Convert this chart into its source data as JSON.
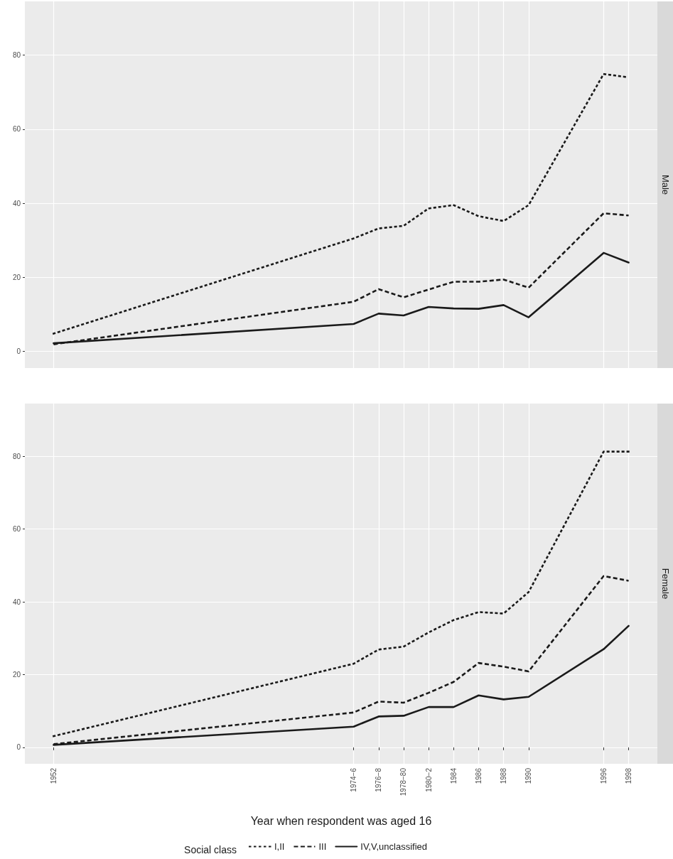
{
  "chart_data": [
    {
      "type": "line",
      "title": "Male",
      "x": [
        1952,
        1976,
        1978,
        1980,
        1982,
        1984,
        1986,
        1988,
        1990,
        1996,
        1998
      ],
      "series": [
        {
          "color": "#1a1a1a",
          "line_style": "dotted",
          "values": [
            4.8,
            30.5,
            33.2,
            33.9,
            38.6,
            39.5,
            36.5,
            35.2,
            39.5,
            74.9,
            74.0
          ]
        },
        {
          "color": "#1a1a1a",
          "line_style": "dashed",
          "values": [
            1.9,
            13.4,
            16.8,
            14.6,
            16.7,
            18.8,
            18.8,
            19.4,
            17.2,
            37.3,
            36.7
          ]
        },
        {
          "color": "#1a1a1a",
          "line_style": "solid",
          "values": [
            2.2,
            7.4,
            10.2,
            9.7,
            12.0,
            11.6,
            11.5,
            12.5,
            9.2,
            26.6,
            24.0
          ]
        }
      ],
      "xlim": [
        1949.7,
        2000.3
      ],
      "xticks": [
        1952,
        1976,
        1978,
        1980,
        1982,
        1984,
        1986,
        1988,
        1990,
        1996,
        1998
      ],
      "ylim": [
        -4.5,
        94.5
      ],
      "yticks": [
        0,
        20,
        40,
        60,
        80
      ],
      "grid": true,
      "marker": "none",
      "tick_labels": "y"
    },
    {
      "type": "line",
      "title": "Female",
      "xlabel": "Year when respondent was aged 16",
      "legend_title": "Social class",
      "x": [
        1952,
        1976,
        1978,
        1980,
        1982,
        1984,
        1986,
        1988,
        1990,
        1996,
        1998
      ],
      "series": [
        {
          "name": "I,II",
          "color": "#1a1a1a",
          "line_style": "dotted",
          "values": [
            3.1,
            23.0,
            26.9,
            27.7,
            31.6,
            35.0,
            37.2,
            36.8,
            42.7,
            81.3,
            81.3
          ]
        },
        {
          "name": "III",
          "color": "#1a1a1a",
          "line_style": "dashed",
          "values": [
            0.9,
            9.6,
            12.6,
            12.3,
            15.0,
            18.0,
            23.2,
            22.2,
            20.9,
            47.1,
            45.8
          ]
        },
        {
          "name": "IV,V,unclassified",
          "color": "#1a1a1a",
          "line_style": "solid",
          "values": [
            0.7,
            5.7,
            8.5,
            8.7,
            11.1,
            11.1,
            14.3,
            13.2,
            13.9,
            27.0,
            33.4
          ]
        }
      ],
      "xlim": [
        1949.7,
        2000.3
      ],
      "xticks": [
        {
          "value": 1952,
          "label": "1952"
        },
        {
          "value": 1976,
          "label": "1974−6"
        },
        {
          "value": 1978,
          "label": "1976−8"
        },
        {
          "value": 1980,
          "label": "1978−80"
        },
        {
          "value": 1982,
          "label": "1980−2"
        },
        {
          "value": 1984,
          "label": "1984"
        },
        {
          "value": 1986,
          "label": "1986"
        },
        {
          "value": 1988,
          "label": "1988"
        },
        {
          "value": 1990,
          "label": "1990"
        },
        {
          "value": 1996,
          "label": "1996"
        },
        {
          "value": 1998,
          "label": "1998"
        }
      ],
      "ylim": [
        -4.5,
        94.5
      ],
      "yticks": [
        0,
        20,
        40,
        60,
        80
      ],
      "grid": true,
      "marker": "none",
      "legend": "bottom"
    }
  ]
}
